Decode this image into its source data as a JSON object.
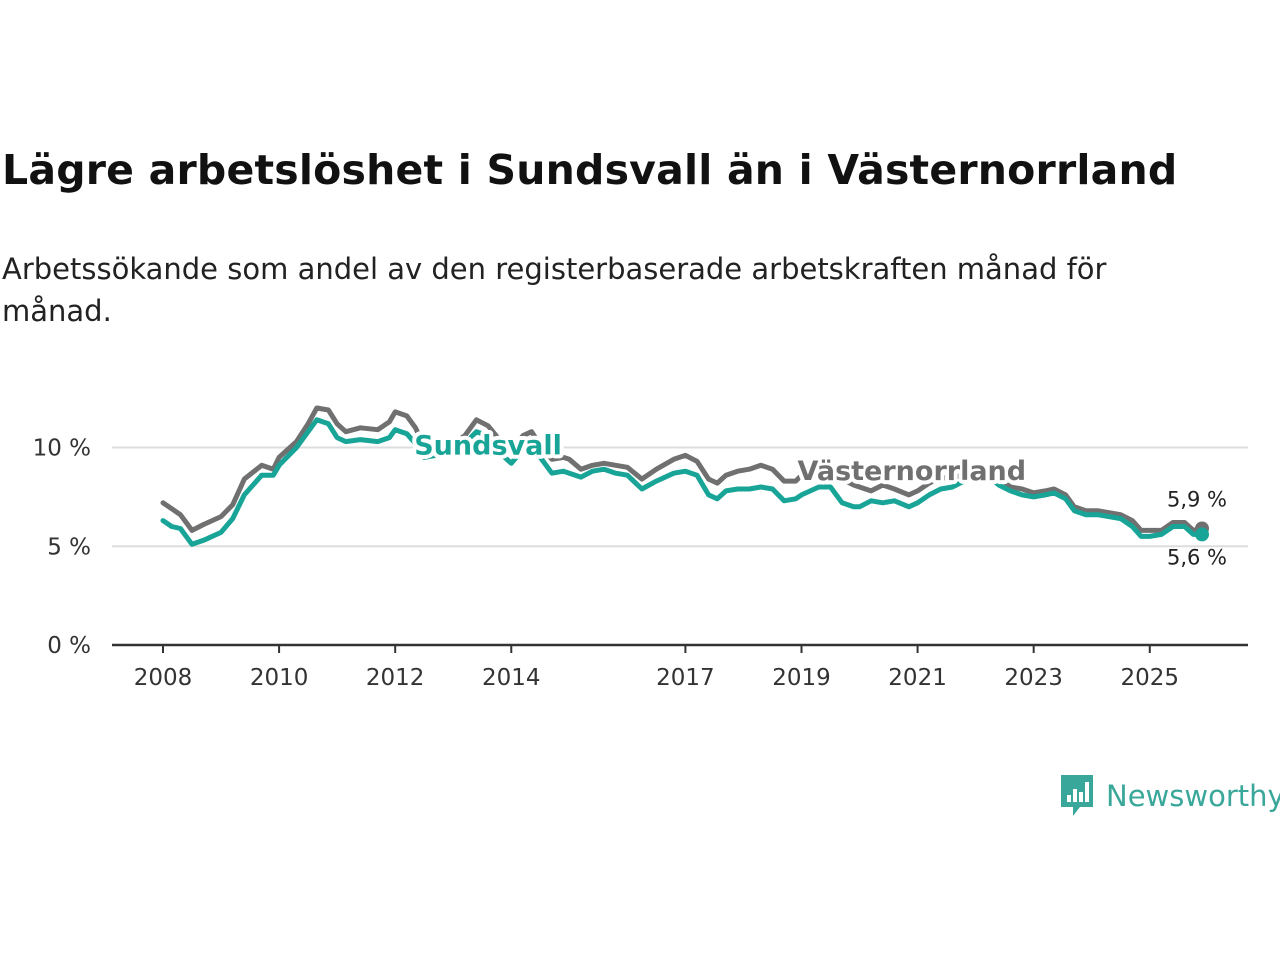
{
  "title": "Lägre arbetslöshet i Sundsvall än i Västernorrland",
  "subtitle": "Arbetssökande som andel av den registerbaserade arbetskraften månad för månad.",
  "brand": {
    "name": "Newsworthy",
    "color": "#3aa79b"
  },
  "colors": {
    "sundsvall": "#18a597",
    "vasternorrland": "#707070",
    "grid": "#dddddd",
    "axis": "#333333"
  },
  "chart_data": {
    "type": "line",
    "title": "Lägre arbetslöshet i Sundsvall än i Västernorrland",
    "xlabel": "",
    "ylabel": "",
    "xlim": [
      2008.0,
      2025.9
    ],
    "ylim": [
      0,
      12
    ],
    "y_ticks": [
      0,
      5,
      10
    ],
    "y_tick_labels": [
      "0 %",
      "5 %",
      "10 %"
    ],
    "x_ticks": [
      2008,
      2010,
      2012,
      2014,
      2017,
      2019,
      2021,
      2023,
      2025
    ],
    "x_tick_labels": [
      "2008",
      "2010",
      "2012",
      "2014",
      "2017",
      "2019",
      "2021",
      "2023",
      "2025"
    ],
    "series": [
      {
        "name": "Västernorrland",
        "color": "#707070",
        "end_label": "5,9 %",
        "points": [
          [
            2008.0,
            7.2
          ],
          [
            2008.15,
            6.9
          ],
          [
            2008.3,
            6.6
          ],
          [
            2008.5,
            5.8
          ],
          [
            2008.7,
            6.1
          ],
          [
            2009.0,
            6.5
          ],
          [
            2009.2,
            7.1
          ],
          [
            2009.4,
            8.4
          ],
          [
            2009.7,
            9.1
          ],
          [
            2009.9,
            8.9
          ],
          [
            2010.0,
            9.5
          ],
          [
            2010.3,
            10.3
          ],
          [
            2010.5,
            11.2
          ],
          [
            2010.65,
            12.0
          ],
          [
            2010.85,
            11.9
          ],
          [
            2011.0,
            11.2
          ],
          [
            2011.15,
            10.8
          ],
          [
            2011.4,
            11.0
          ],
          [
            2011.7,
            10.9
          ],
          [
            2011.9,
            11.3
          ],
          [
            2012.0,
            11.8
          ],
          [
            2012.2,
            11.6
          ],
          [
            2012.35,
            11.0
          ],
          [
            2012.5,
            10.0
          ],
          [
            2012.7,
            10.1
          ],
          [
            2012.85,
            10.4
          ],
          [
            2013.0,
            10.2
          ],
          [
            2013.2,
            10.6
          ],
          [
            2013.4,
            11.4
          ],
          [
            2013.6,
            11.1
          ],
          [
            2013.85,
            10.2
          ],
          [
            2014.0,
            9.8
          ],
          [
            2014.2,
            10.6
          ],
          [
            2014.35,
            10.8
          ],
          [
            2014.5,
            10.1
          ],
          [
            2014.7,
            9.4
          ],
          [
            2014.9,
            9.5
          ],
          [
            2015.0,
            9.4
          ],
          [
            2015.2,
            8.9
          ],
          [
            2015.4,
            9.1
          ],
          [
            2015.6,
            9.2
          ],
          [
            2015.8,
            9.1
          ],
          [
            2016.0,
            9.0
          ],
          [
            2016.25,
            8.4
          ],
          [
            2016.5,
            8.9
          ],
          [
            2016.8,
            9.4
          ],
          [
            2017.0,
            9.6
          ],
          [
            2017.2,
            9.3
          ],
          [
            2017.4,
            8.4
          ],
          [
            2017.55,
            8.2
          ],
          [
            2017.7,
            8.6
          ],
          [
            2017.9,
            8.8
          ],
          [
            2018.1,
            8.9
          ],
          [
            2018.3,
            9.1
          ],
          [
            2018.5,
            8.9
          ],
          [
            2018.7,
            8.3
          ],
          [
            2018.9,
            8.3
          ],
          [
            2019.0,
            8.6
          ],
          [
            2019.3,
            9.3
          ],
          [
            2019.5,
            9.1
          ],
          [
            2019.7,
            8.4
          ],
          [
            2019.9,
            8.1
          ],
          [
            2020.0,
            8.0
          ],
          [
            2020.2,
            7.8
          ],
          [
            2020.4,
            8.1
          ],
          [
            2020.6,
            7.9
          ],
          [
            2020.85,
            7.6
          ],
          [
            2021.0,
            7.8
          ],
          [
            2021.2,
            8.2
          ],
          [
            2021.4,
            8.5
          ],
          [
            2021.6,
            8.4
          ],
          [
            2021.8,
            8.7
          ],
          [
            2022.0,
            8.9
          ],
          [
            2022.2,
            9.0
          ],
          [
            2022.4,
            8.5
          ],
          [
            2022.6,
            8.0
          ],
          [
            2022.8,
            7.9
          ],
          [
            2023.0,
            7.7
          ],
          [
            2023.2,
            7.8
          ],
          [
            2023.35,
            7.9
          ],
          [
            2023.55,
            7.6
          ],
          [
            2023.7,
            7.0
          ],
          [
            2023.9,
            6.8
          ],
          [
            2024.1,
            6.8
          ],
          [
            2024.3,
            6.7
          ],
          [
            2024.5,
            6.6
          ],
          [
            2024.7,
            6.3
          ],
          [
            2024.85,
            5.8
          ],
          [
            2025.0,
            5.8
          ],
          [
            2025.2,
            5.8
          ],
          [
            2025.4,
            6.2
          ],
          [
            2025.6,
            6.2
          ],
          [
            2025.75,
            5.8
          ],
          [
            2025.9,
            5.9
          ]
        ]
      },
      {
        "name": "Sundsvall",
        "color": "#18a597",
        "end_label": "5,6 %",
        "points": [
          [
            2008.0,
            6.3
          ],
          [
            2008.15,
            6.0
          ],
          [
            2008.3,
            5.9
          ],
          [
            2008.5,
            5.1
          ],
          [
            2008.7,
            5.3
          ],
          [
            2009.0,
            5.7
          ],
          [
            2009.2,
            6.4
          ],
          [
            2009.4,
            7.6
          ],
          [
            2009.7,
            8.6
          ],
          [
            2009.9,
            8.6
          ],
          [
            2010.0,
            9.1
          ],
          [
            2010.3,
            10.0
          ],
          [
            2010.5,
            10.8
          ],
          [
            2010.65,
            11.4
          ],
          [
            2010.85,
            11.2
          ],
          [
            2011.0,
            10.5
          ],
          [
            2011.15,
            10.3
          ],
          [
            2011.4,
            10.4
          ],
          [
            2011.7,
            10.3
          ],
          [
            2011.9,
            10.5
          ],
          [
            2012.0,
            10.9
          ],
          [
            2012.2,
            10.7
          ],
          [
            2012.35,
            10.2
          ],
          [
            2012.5,
            9.5
          ],
          [
            2012.7,
            9.6
          ],
          [
            2012.85,
            10.0
          ],
          [
            2013.0,
            9.8
          ],
          [
            2013.2,
            10.2
          ],
          [
            2013.4,
            10.8
          ],
          [
            2013.6,
            10.6
          ],
          [
            2013.85,
            9.6
          ],
          [
            2014.0,
            9.2
          ],
          [
            2014.2,
            9.9
          ],
          [
            2014.35,
            10.1
          ],
          [
            2014.5,
            9.5
          ],
          [
            2014.7,
            8.7
          ],
          [
            2014.9,
            8.8
          ],
          [
            2015.0,
            8.7
          ],
          [
            2015.2,
            8.5
          ],
          [
            2015.4,
            8.8
          ],
          [
            2015.6,
            8.9
          ],
          [
            2015.8,
            8.7
          ],
          [
            2016.0,
            8.6
          ],
          [
            2016.25,
            7.9
          ],
          [
            2016.5,
            8.3
          ],
          [
            2016.8,
            8.7
          ],
          [
            2017.0,
            8.8
          ],
          [
            2017.2,
            8.6
          ],
          [
            2017.4,
            7.6
          ],
          [
            2017.55,
            7.4
          ],
          [
            2017.7,
            7.8
          ],
          [
            2017.9,
            7.9
          ],
          [
            2018.1,
            7.9
          ],
          [
            2018.3,
            8.0
          ],
          [
            2018.5,
            7.9
          ],
          [
            2018.7,
            7.3
          ],
          [
            2018.9,
            7.4
          ],
          [
            2019.0,
            7.6
          ],
          [
            2019.3,
            8.0
          ],
          [
            2019.5,
            8.0
          ],
          [
            2019.7,
            7.2
          ],
          [
            2019.9,
            7.0
          ],
          [
            2020.0,
            7.0
          ],
          [
            2020.2,
            7.3
          ],
          [
            2020.4,
            7.2
          ],
          [
            2020.6,
            7.3
          ],
          [
            2020.85,
            7.0
          ],
          [
            2021.0,
            7.2
          ],
          [
            2021.2,
            7.6
          ],
          [
            2021.4,
            7.9
          ],
          [
            2021.6,
            8.0
          ],
          [
            2021.8,
            8.3
          ],
          [
            2022.0,
            8.5
          ],
          [
            2022.2,
            8.6
          ],
          [
            2022.4,
            8.1
          ],
          [
            2022.6,
            7.8
          ],
          [
            2022.8,
            7.6
          ],
          [
            2023.0,
            7.5
          ],
          [
            2023.2,
            7.6
          ],
          [
            2023.35,
            7.7
          ],
          [
            2023.55,
            7.4
          ],
          [
            2023.7,
            6.8
          ],
          [
            2023.9,
            6.6
          ],
          [
            2024.1,
            6.6
          ],
          [
            2024.3,
            6.5
          ],
          [
            2024.5,
            6.4
          ],
          [
            2024.7,
            6.0
          ],
          [
            2024.85,
            5.5
          ],
          [
            2025.0,
            5.5
          ],
          [
            2025.2,
            5.6
          ],
          [
            2025.4,
            6.0
          ],
          [
            2025.6,
            6.0
          ],
          [
            2025.75,
            5.6
          ],
          [
            2025.9,
            5.6
          ]
        ]
      }
    ],
    "annotations": [
      {
        "text": "Sundsvall",
        "series": "Sundsvall",
        "at_x": 2013.6,
        "at_y": 10.1
      },
      {
        "text": "Västernorrland",
        "series": "Västernorrland",
        "at_x": 2020.9,
        "at_y": 8.8
      }
    ],
    "grid": true
  }
}
